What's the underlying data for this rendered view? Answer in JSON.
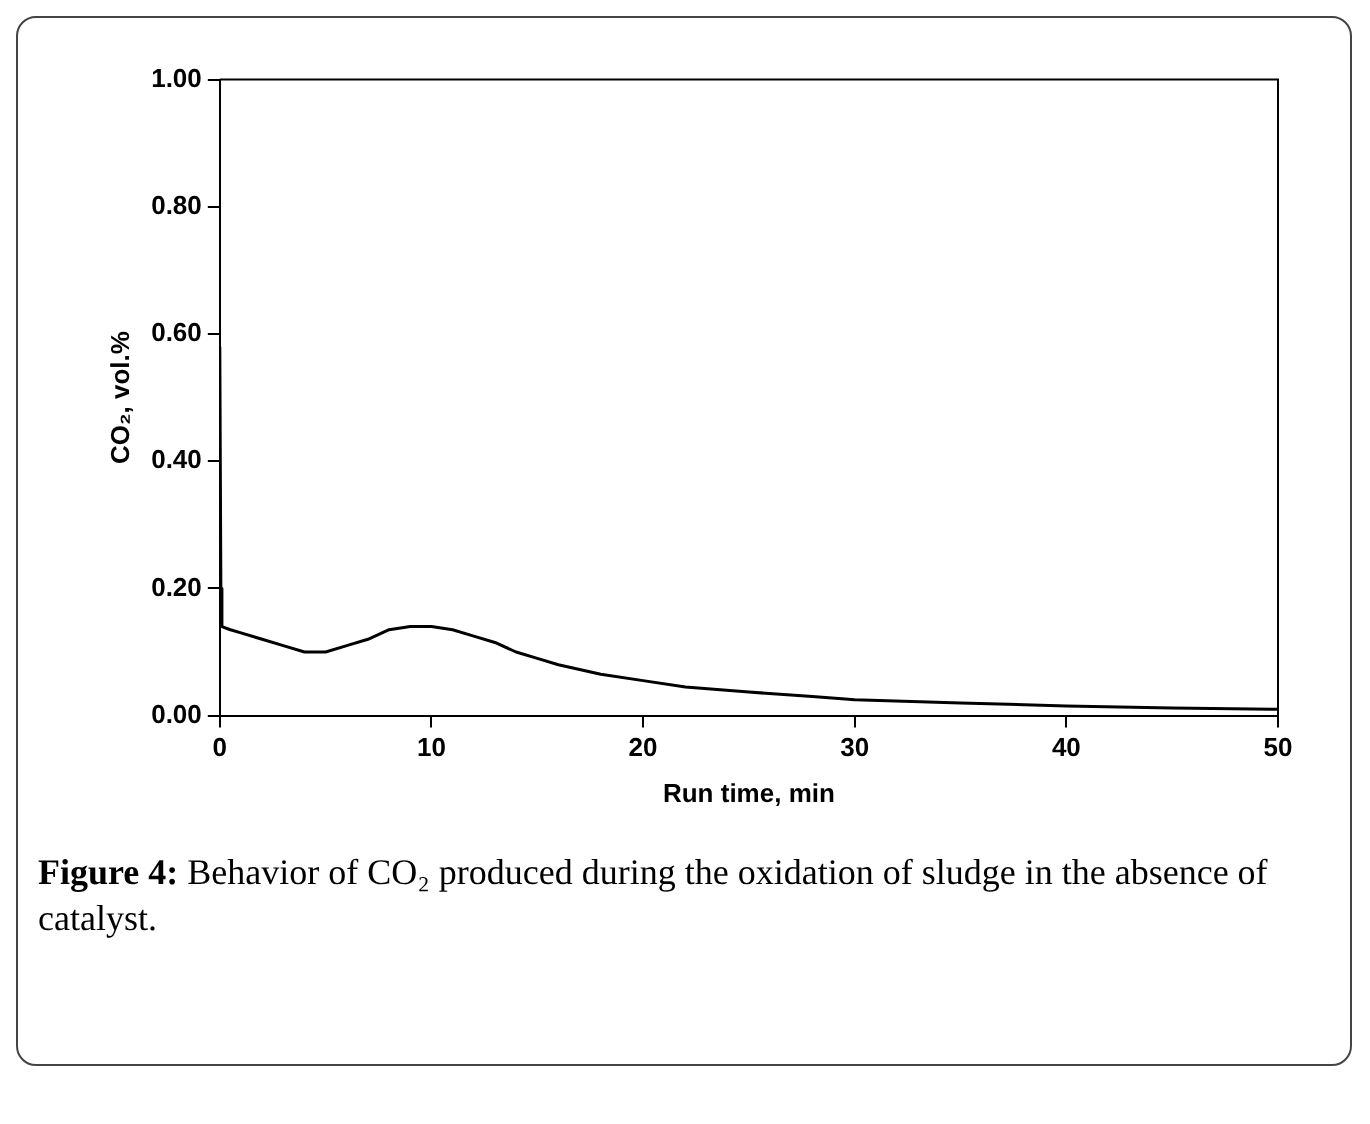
{
  "chart_data": {
    "type": "line",
    "xlabel": "Run time, min",
    "ylabel": "CO₂, vol.%",
    "annotations": [
      "Figure 4: Behavior of CO₂ produced during the oxidation of sludge in the absence of catalyst."
    ],
    "series": [
      {
        "color": "#000000",
        "x": [
          0,
          0.05,
          0.1,
          0.5,
          1,
          2,
          3,
          4,
          5,
          6,
          7,
          8,
          9,
          10,
          11,
          12,
          13,
          14,
          15,
          16,
          18,
          20,
          22,
          25,
          28,
          30,
          35,
          40,
          45,
          50
        ],
        "values": [
          0.58,
          0.2,
          0.14,
          0.135,
          0.13,
          0.12,
          0.11,
          0.1,
          0.1,
          0.11,
          0.12,
          0.135,
          0.14,
          0.14,
          0.135,
          0.125,
          0.115,
          0.1,
          0.09,
          0.08,
          0.065,
          0.055,
          0.045,
          0.037,
          0.03,
          0.025,
          0.02,
          0.015,
          0.012,
          0.01
        ]
      }
    ],
    "xlim": [
      0,
      50
    ],
    "xticks": [
      0,
      10,
      20,
      30,
      40,
      50
    ],
    "ylim": [
      0,
      1
    ],
    "yticks": [
      {
        "value": 0,
        "label": "0.00"
      },
      {
        "value": 0.2,
        "label": "0.20"
      },
      {
        "value": 0.4,
        "label": "0.40"
      },
      {
        "value": 0.6,
        "label": "0.60"
      },
      {
        "value": 0.8,
        "label": "0.80"
      },
      {
        "value": 1,
        "label": "1.00"
      }
    ],
    "grid": false,
    "legend": false,
    "marker": "none",
    "line_style": "solid"
  }
}
